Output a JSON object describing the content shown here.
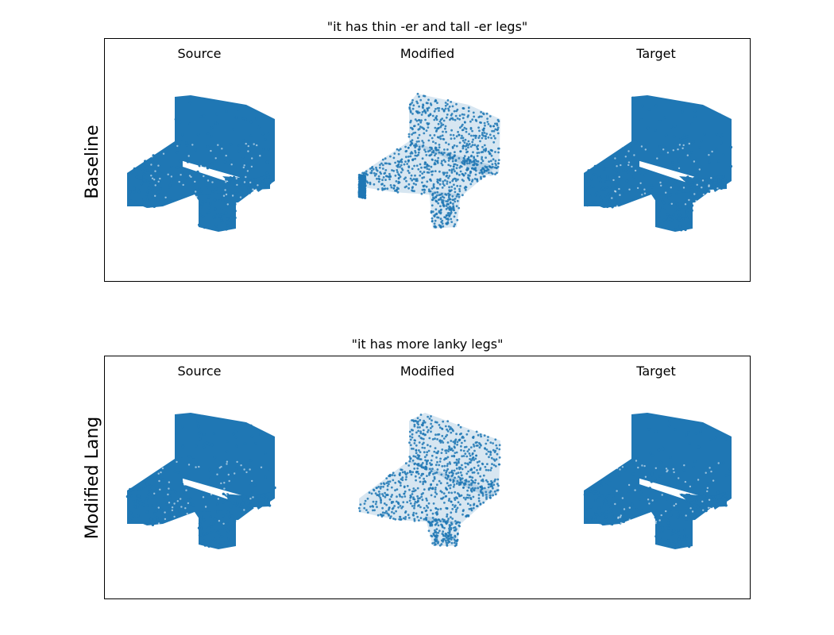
{
  "panels": [
    {
      "title": "\"it has thin -er and tall -er legs\"",
      "row_label": "Baseline",
      "columns": [
        "Source",
        "Modified",
        "Target"
      ]
    },
    {
      "title": "\"it has more lanky legs\"",
      "row_label": "Modified Lang",
      "columns": [
        "Source",
        "Modified",
        "Target"
      ]
    }
  ],
  "colors": {
    "points": "#1f77b4",
    "frame": "#000000"
  },
  "shapes": {
    "source": "dense-armchair",
    "modified": "sparse-chair-tall-legs",
    "target": "dense-armchair"
  }
}
